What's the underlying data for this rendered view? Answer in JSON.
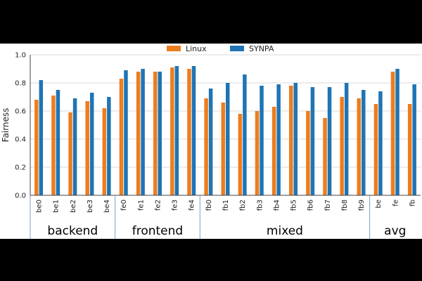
{
  "chart_data": {
    "type": "bar",
    "title": "",
    "xlabel": "",
    "ylabel": "Fairness",
    "ylim": [
      0,
      1.0
    ],
    "yticks": [
      "0.0",
      "0.2",
      "0.4",
      "0.6",
      "0.8",
      "1.0"
    ],
    "grid": true,
    "legend_position": "top-center",
    "colors": {
      "Linux": "#ED7D1F",
      "SYNPA": "#1F74B4"
    },
    "categories": [
      "be0",
      "be1",
      "be2",
      "be3",
      "be4",
      "fe0",
      "fe1",
      "fe2",
      "fe3",
      "fe4",
      "fb0",
      "fb1",
      "fb2",
      "fb3",
      "fb4",
      "fb5",
      "fb6",
      "fb7",
      "fb8",
      "fb9",
      "be",
      "fe",
      "fb"
    ],
    "groups": [
      {
        "label": "backend",
        "count": 5
      },
      {
        "label": "frontend",
        "count": 5
      },
      {
        "label": "mixed",
        "count": 10
      },
      {
        "label": "avg",
        "count": 3
      }
    ],
    "series": [
      {
        "name": "Linux",
        "values": [
          0.68,
          0.71,
          0.59,
          0.67,
          0.62,
          0.83,
          0.88,
          0.88,
          0.91,
          0.9,
          0.69,
          0.66,
          0.58,
          0.6,
          0.63,
          0.78,
          0.6,
          0.55,
          0.7,
          0.69,
          0.65,
          0.88,
          0.65
        ]
      },
      {
        "name": "SYNPA",
        "values": [
          0.82,
          0.75,
          0.69,
          0.73,
          0.7,
          0.89,
          0.9,
          0.88,
          0.92,
          0.92,
          0.76,
          0.8,
          0.86,
          0.78,
          0.79,
          0.8,
          0.77,
          0.77,
          0.8,
          0.75,
          0.74,
          0.9,
          0.79
        ]
      }
    ]
  }
}
